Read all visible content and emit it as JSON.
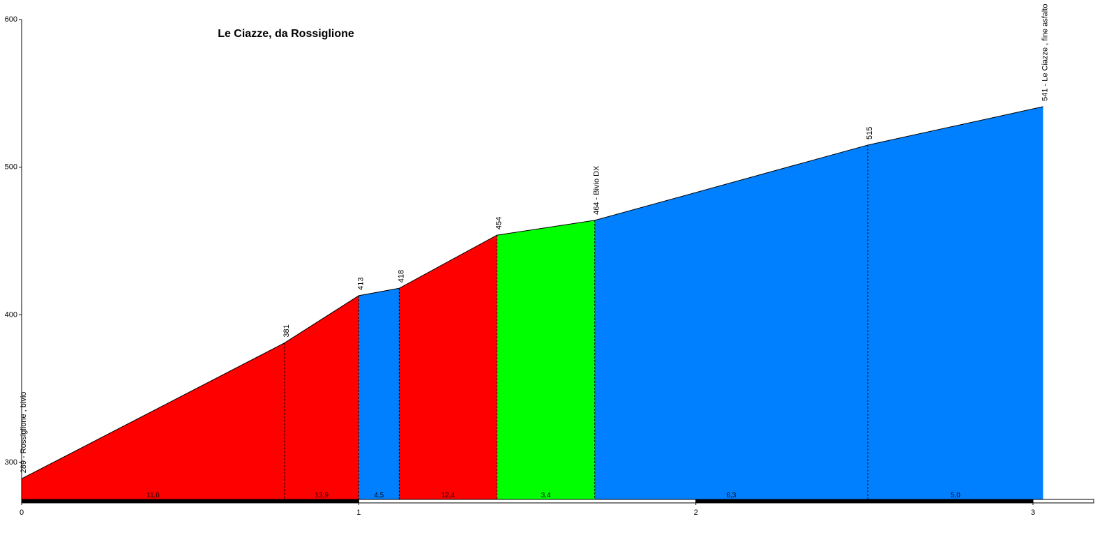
{
  "chart_data": {
    "type": "area",
    "title": "Le Ciazze, da Rossiglione",
    "x": [
      0,
      0.78,
      1.0,
      1.12,
      1.41,
      1.7,
      2.51,
      3.03
    ],
    "values": [
      289,
      381,
      413,
      418,
      454,
      464,
      515,
      541
    ],
    "value_labels": [
      "289 - Rossiglione , bivio",
      "381",
      "413",
      "418",
      "454",
      "464 - Bivio DX",
      "515",
      "541 - Le Ciazze , fine asfalto"
    ],
    "segment_labels": [
      "11,6",
      "13,9",
      "4,5",
      "12,4",
      "3,4",
      "6,3",
      "5,0"
    ],
    "segment_colors": [
      "#ff0000",
      "#ff0000",
      "#0080ff",
      "#ff0000",
      "#00ff00",
      "#0080ff",
      "#0080ff"
    ],
    "xlim": [
      0,
      3.18
    ],
    "xticks": [
      0,
      1,
      2,
      3
    ],
    "ylim": [
      275,
      600
    ],
    "yticks": [
      300,
      400,
      500,
      600
    ]
  }
}
